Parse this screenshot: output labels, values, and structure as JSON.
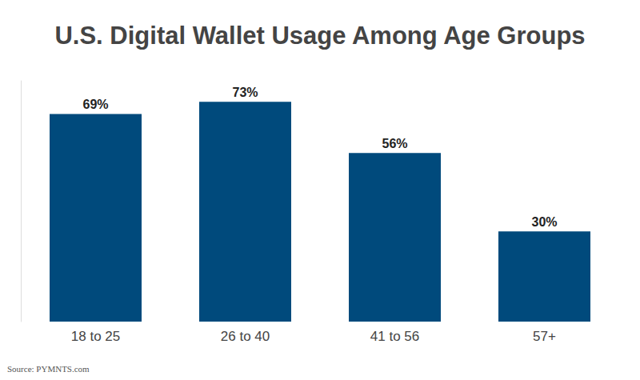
{
  "chart_data": {
    "type": "bar",
    "title": "U.S. Digital Wallet Usage Among Age Groups",
    "categories": [
      "18 to 25",
      "26 to 40",
      "41 to 56",
      "57+"
    ],
    "values": [
      69,
      73,
      56,
      30
    ],
    "value_labels": [
      "69%",
      "73%",
      "56%",
      "30%"
    ],
    "color": "#004a7c",
    "ylim": [
      0,
      80
    ],
    "grid": false,
    "data_labels": true,
    "tick_labels": "x",
    "annotations": [
      "Source: PYMNTS.com"
    ]
  }
}
